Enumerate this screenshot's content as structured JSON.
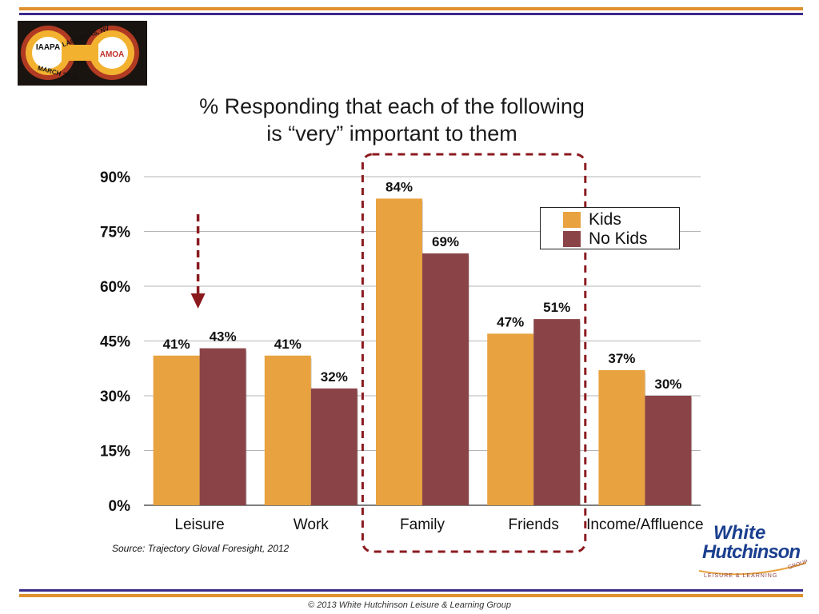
{
  "header": {
    "logo_texts": [
      "LAS VEGAS, NV",
      "MARCH 20-22",
      "IAAPA",
      "AMOA"
    ]
  },
  "colors": {
    "kids": "#e8a23f",
    "no_kids": "#8a4448",
    "highlight": "#8b1a1f",
    "rule_orange": "#e0912f",
    "rule_purple": "#3c2a8a",
    "brand_blue": "#1b3f8f"
  },
  "chart_data": {
    "type": "bar",
    "title_lines": [
      "% Responding that each of the following",
      "is “very” important to them"
    ],
    "categories": [
      "Leisure",
      "Work",
      "Family",
      "Friends",
      "Income/Affluence"
    ],
    "series": [
      {
        "name": "Kids",
        "values": [
          41,
          41,
          84,
          47,
          37
        ]
      },
      {
        "name": "No Kids",
        "values": [
          43,
          32,
          69,
          51,
          30
        ]
      }
    ],
    "data_labels": [
      [
        "41%",
        "41%",
        "84%",
        "47%",
        "37%"
      ],
      [
        "43%",
        "32%",
        "69%",
        "51%",
        "30%"
      ]
    ],
    "y_ticks": [
      "0%",
      "15%",
      "30%",
      "45%",
      "60%",
      "75%",
      "90%"
    ],
    "ylim": [
      0,
      90
    ],
    "grid": true,
    "legend_position": "top-right",
    "annotations": {
      "highlight_box_categories": [
        "Family",
        "Friends"
      ],
      "arrow_category": "Leisure"
    }
  },
  "footer": {
    "source": "Source: Trajectory Gloval Foresight, 2012",
    "brand_line1": "White",
    "brand_line2": "Hutchinson",
    "brand_tagline": "LEISURE & LEARNING",
    "brand_group": "GROUP",
    "copyright": "© 2013 White Hutchinson Leisure & Learning Group"
  }
}
